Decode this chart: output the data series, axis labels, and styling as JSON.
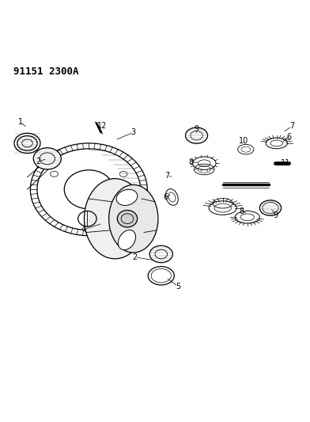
{
  "title": "91151 2300A",
  "background_color": "#ffffff",
  "line_color": "#000000",
  "figsize": [
    3.92,
    5.33
  ],
  "dpi": 100
}
